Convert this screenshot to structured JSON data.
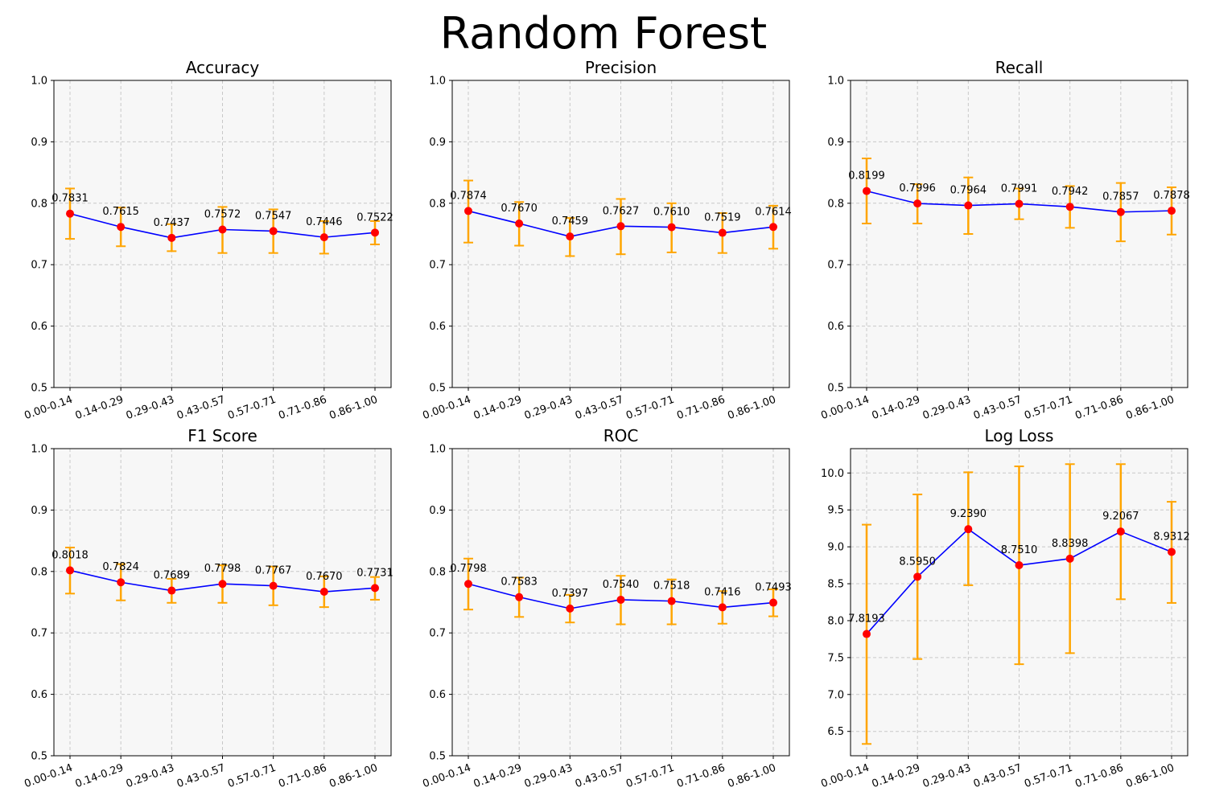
{
  "figure": {
    "title": "Random Forest"
  },
  "colors": {
    "line": "#0000ff",
    "marker": "#ff0000",
    "errorbar": "#ffa500",
    "grid": "#c8c8c8",
    "plot_bg": "#f7f7f7"
  },
  "chart_data": [
    {
      "type": "line",
      "title": "Accuracy",
      "categories": [
        "0.00-0.14",
        "0.14-0.29",
        "0.29-0.43",
        "0.43-0.57",
        "0.57-0.71",
        "0.71-0.86",
        "0.86-1.00"
      ],
      "values": [
        0.7831,
        0.7615,
        0.7437,
        0.7572,
        0.7547,
        0.7446,
        0.7522
      ],
      "labels": [
        "0.7831",
        "0.7615",
        "0.7437",
        "0.7572",
        "0.7547",
        "0.7446",
        "0.7522"
      ],
      "err_low": [
        0.742,
        0.73,
        0.722,
        0.719,
        0.719,
        0.718,
        0.733
      ],
      "err_high": [
        0.824,
        0.793,
        0.766,
        0.794,
        0.79,
        0.771,
        0.771
      ],
      "ylim": [
        0.5,
        1.0
      ],
      "yticks": [
        "0.5",
        "0.6",
        "0.7",
        "0.8",
        "0.9",
        "1.0"
      ],
      "grid": true
    },
    {
      "type": "line",
      "title": "Precision",
      "categories": [
        "0.00-0.14",
        "0.14-0.29",
        "0.29-0.43",
        "0.43-0.57",
        "0.57-0.71",
        "0.71-0.86",
        "0.86-1.00"
      ],
      "values": [
        0.7874,
        0.767,
        0.7459,
        0.7627,
        0.761,
        0.7519,
        0.7614
      ],
      "labels": [
        "0.7874",
        "0.7670",
        "0.7459",
        "0.7627",
        "0.7610",
        "0.7519",
        "0.7614"
      ],
      "err_low": [
        0.736,
        0.731,
        0.714,
        0.717,
        0.72,
        0.719,
        0.726
      ],
      "err_high": [
        0.837,
        0.802,
        0.776,
        0.807,
        0.8,
        0.784,
        0.796
      ],
      "ylim": [
        0.5,
        1.0
      ],
      "yticks": [
        "0.5",
        "0.6",
        "0.7",
        "0.8",
        "0.9",
        "1.0"
      ],
      "grid": true
    },
    {
      "type": "line",
      "title": "Recall",
      "categories": [
        "0.00-0.14",
        "0.14-0.29",
        "0.29-0.43",
        "0.43-0.57",
        "0.57-0.71",
        "0.71-0.86",
        "0.86-1.00"
      ],
      "values": [
        0.8199,
        0.7996,
        0.7964,
        0.7991,
        0.7942,
        0.7857,
        0.7878
      ],
      "labels": [
        "0.8199",
        "0.7996",
        "0.7964",
        "0.7991",
        "0.7942",
        "0.7857",
        "0.7878"
      ],
      "err_low": [
        0.767,
        0.767,
        0.75,
        0.774,
        0.76,
        0.738,
        0.749
      ],
      "err_high": [
        0.873,
        0.831,
        0.842,
        0.824,
        0.828,
        0.833,
        0.826
      ],
      "ylim": [
        0.5,
        1.0
      ],
      "yticks": [
        "0.5",
        "0.6",
        "0.7",
        "0.8",
        "0.9",
        "1.0"
      ],
      "grid": true
    },
    {
      "type": "line",
      "title": "F1 Score",
      "categories": [
        "0.00-0.14",
        "0.14-0.29",
        "0.29-0.43",
        "0.43-0.57",
        "0.57-0.71",
        "0.71-0.86",
        "0.86-1.00"
      ],
      "values": [
        0.8018,
        0.7824,
        0.7689,
        0.7798,
        0.7767,
        0.767,
        0.7731
      ],
      "labels": [
        "0.8018",
        "0.7824",
        "0.7689",
        "0.7798",
        "0.7767",
        "0.7670",
        "0.7731"
      ],
      "err_low": [
        0.764,
        0.753,
        0.749,
        0.749,
        0.745,
        0.742,
        0.754
      ],
      "err_high": [
        0.839,
        0.812,
        0.788,
        0.81,
        0.808,
        0.792,
        0.791
      ],
      "ylim": [
        0.5,
        1.0
      ],
      "yticks": [
        "0.5",
        "0.6",
        "0.7",
        "0.8",
        "0.9",
        "1.0"
      ],
      "grid": true
    },
    {
      "type": "line",
      "title": "ROC",
      "categories": [
        "0.00-0.14",
        "0.14-0.29",
        "0.29-0.43",
        "0.43-0.57",
        "0.57-0.71",
        "0.71-0.86",
        "0.86-1.00"
      ],
      "values": [
        0.7798,
        0.7583,
        0.7397,
        0.754,
        0.7518,
        0.7416,
        0.7493
      ],
      "labels": [
        "0.7798",
        "0.7583",
        "0.7397",
        "0.7540",
        "0.7518",
        "0.7416",
        "0.7493"
      ],
      "err_low": [
        0.738,
        0.726,
        0.717,
        0.714,
        0.714,
        0.715,
        0.727
      ],
      "err_high": [
        0.821,
        0.79,
        0.762,
        0.793,
        0.787,
        0.768,
        0.771
      ],
      "ylim": [
        0.5,
        1.0
      ],
      "yticks": [
        "0.5",
        "0.6",
        "0.7",
        "0.8",
        "0.9",
        "1.0"
      ],
      "grid": true
    },
    {
      "type": "line",
      "title": "Log Loss",
      "categories": [
        "0.00-0.14",
        "0.14-0.29",
        "0.29-0.43",
        "0.43-0.57",
        "0.57-0.71",
        "0.71-0.86",
        "0.86-1.00"
      ],
      "values": [
        7.8193,
        8.595,
        9.239,
        8.751,
        8.8398,
        9.2067,
        8.9312
      ],
      "labels": [
        "7.8193",
        "8.5950",
        "9.2390",
        "8.7510",
        "8.8398",
        "9.2067",
        "8.9312"
      ],
      "err_low": [
        6.33,
        7.48,
        8.48,
        7.41,
        7.56,
        8.29,
        8.24
      ],
      "err_high": [
        9.3,
        9.71,
        10.01,
        10.09,
        10.12,
        10.12,
        9.61
      ],
      "ylim": [
        6.17,
        10.33
      ],
      "ytick_values": [
        6.5,
        7.0,
        7.5,
        8.0,
        8.5,
        9.0,
        9.5,
        10.0
      ],
      "yticks": [
        "6.5",
        "7.0",
        "7.5",
        "8.0",
        "8.5",
        "9.0",
        "9.5",
        "10.0"
      ],
      "grid": true
    }
  ]
}
